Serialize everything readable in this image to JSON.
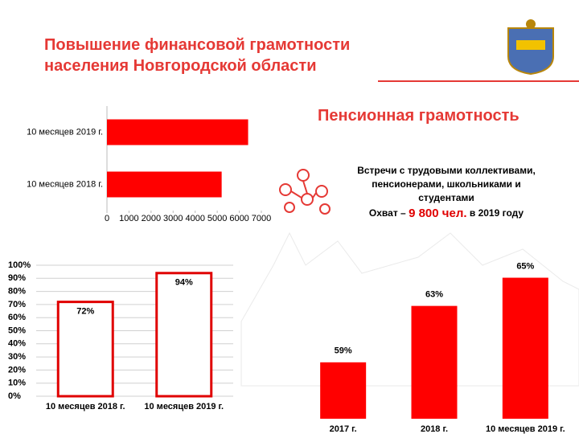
{
  "header": {
    "title_line1": "Повышение финансовой грамотности",
    "title_line2": "населения Новгородской области"
  },
  "section_title": "Пенсионная грамотность",
  "description": {
    "line1": "Встречи с трудовыми коллективами,",
    "line2": "пенсионерами, школьниками и",
    "line3": "студентами",
    "coverage_prefix": "Охват –",
    "coverage_value": "9 800 чел.",
    "coverage_suffix": "в 2019 году"
  },
  "chart_data": [
    {
      "type": "barh",
      "categories": [
        "10 месяцев 2019 г.",
        "10 месяцев 2018 г."
      ],
      "values": [
        6400,
        5200
      ],
      "color": "#ff0000",
      "xlim": [
        0,
        7000
      ],
      "xticks": [
        0,
        1000,
        2000,
        3000,
        4000,
        5000,
        6000,
        7000
      ]
    },
    {
      "type": "bar",
      "categories": [
        "10 месяцев 2018 г.",
        "10 месяцев 2019 г."
      ],
      "values": [
        72,
        94
      ],
      "value_labels": [
        "72%",
        "94%"
      ],
      "color": "#ffffff",
      "border_color": "#e00000",
      "grid": true,
      "ylim": [
        0,
        100
      ],
      "yticks": [
        {
          "value": 0,
          "label": "0%"
        },
        {
          "value": 10,
          "label": "10%"
        },
        {
          "value": 20,
          "label": "20%"
        },
        {
          "value": 30,
          "label": "30%"
        },
        {
          "value": 40,
          "label": "40%"
        },
        {
          "value": 50,
          "label": "50%"
        },
        {
          "value": 60,
          "label": "60%"
        },
        {
          "value": 70,
          "label": "70%"
        },
        {
          "value": 80,
          "label": "80%"
        },
        {
          "value": 90,
          "label": "90%"
        },
        {
          "value": 100,
          "label": "100%"
        }
      ]
    },
    {
      "type": "bar",
      "categories": [
        "2017 г.",
        "2018 г.",
        "10 месяцев 2019 г."
      ],
      "values": [
        59,
        63,
        65
      ],
      "value_labels": [
        "59%",
        "63%",
        "65%"
      ],
      "color": "#ff0000",
      "ylim": [
        55,
        66
      ]
    }
  ]
}
